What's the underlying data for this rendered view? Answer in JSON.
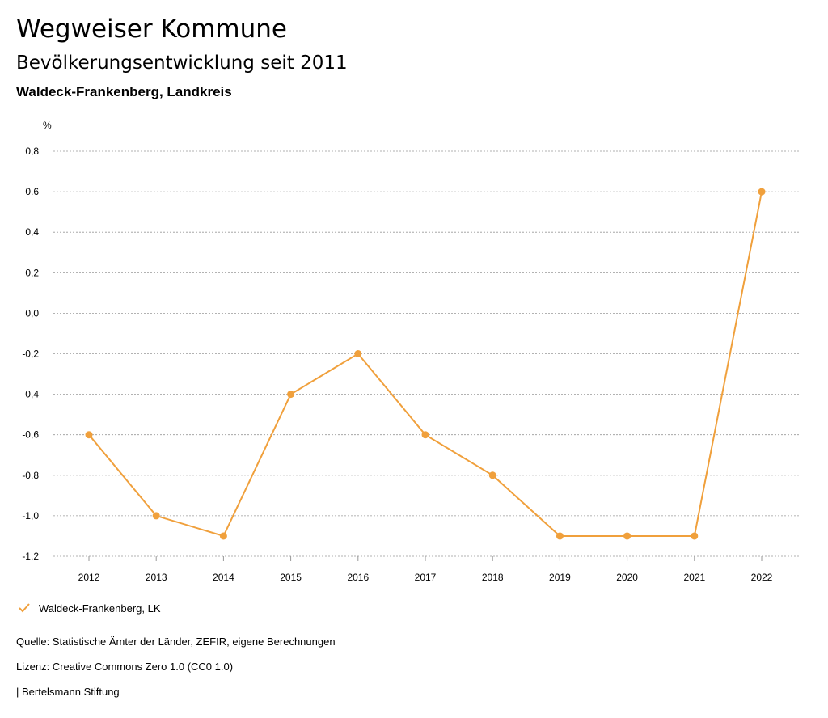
{
  "header": {
    "title": "Wegweiser Kommune",
    "subtitle": "Bevölkerungsentwicklung seit 2011",
    "region": "Waldeck-Frankenberg, Landkreis"
  },
  "chart_data": {
    "type": "line",
    "ylabel": "%",
    "ylim": [
      -1.2,
      0.8
    ],
    "yticks": [
      0.8,
      0.6,
      0.4,
      0.2,
      0.0,
      -0.2,
      -0.4,
      -0.6,
      -0.8,
      -1.0,
      -1.2
    ],
    "ytick_labels": [
      "0,8",
      "0.6",
      "0,4",
      "0,2",
      "0,0",
      "-0,2",
      "-0,4",
      "-0,6",
      "-0,8",
      "-1,0",
      "-1,2"
    ],
    "categories": [
      "2012",
      "2013",
      "2014",
      "2015",
      "2016",
      "2017",
      "2018",
      "2019",
      "2020",
      "2021",
      "2022"
    ],
    "series": [
      {
        "name": "Waldeck-Frankenberg, LK",
        "color": "#f0a03c",
        "values": [
          -0.6,
          -1.0,
          -1.1,
          -0.4,
          -0.2,
          -0.6,
          -0.8,
          -1.1,
          -1.1,
          -1.1,
          0.6
        ]
      }
    ],
    "grid": true,
    "legend": "bottom-left"
  },
  "legend": {
    "label": "Waldeck-Frankenberg, LK"
  },
  "footer": {
    "source": "Quelle: Statistische Ämter der Länder, ZEFIR, eigene Berechnungen",
    "license": "Lizenz: Creative Commons Zero 1.0 (CC0 1.0)",
    "publisher": "| Bertelsmann Stiftung"
  }
}
